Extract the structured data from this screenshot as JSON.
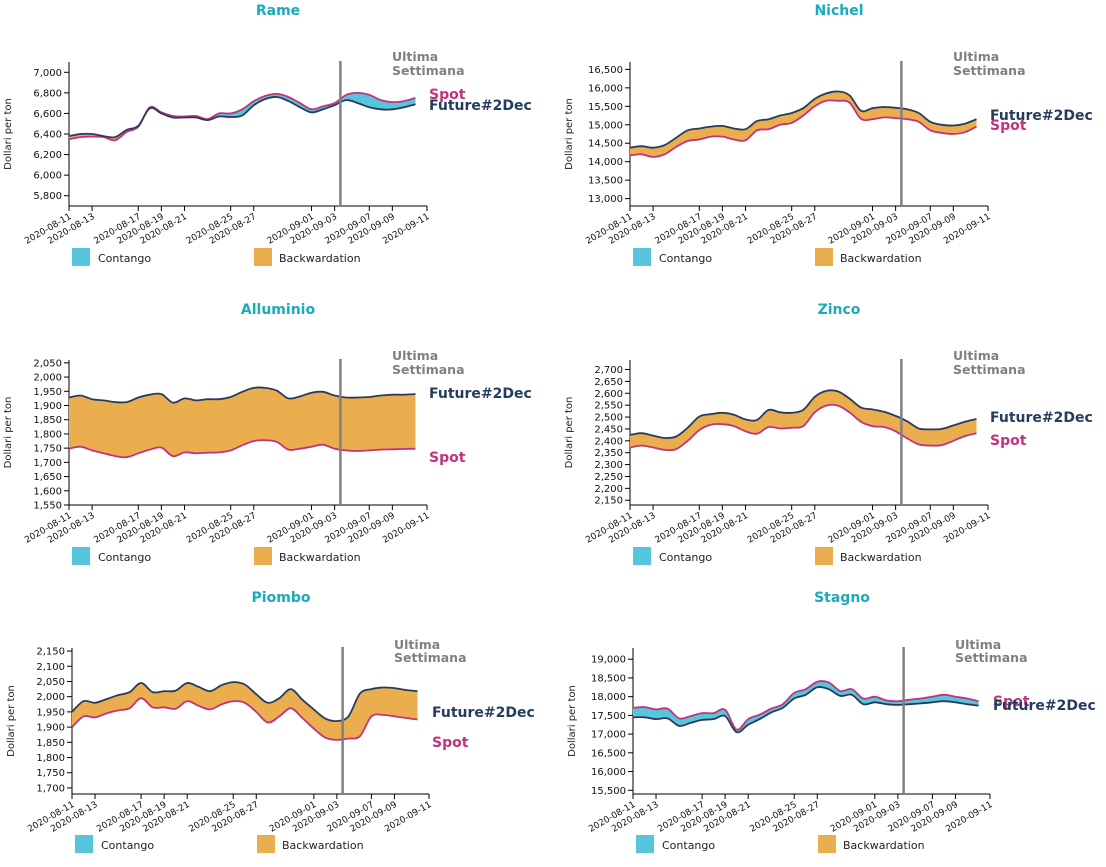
{
  "legend": {
    "contango": "Contango",
    "backwardation": "Backwardation"
  },
  "labels": {
    "last_week": "Ultima Settimana",
    "last_week_line1": "Ultima",
    "last_week_line2": "Settimana"
  },
  "colors": {
    "title": "#1aabbc",
    "spot": "#c6317b",
    "future": "#263c5c",
    "contango": "#57c6dd",
    "backwardation": "#eaae4e",
    "marker": "#808080",
    "marker_text": "#808080"
  },
  "chart_data": [
    {
      "type": "area",
      "title": "Rame",
      "ylabel": "Dollari per ton",
      "xlabel": "",
      "ylim": [
        5700,
        7100
      ],
      "yticks": [
        5800,
        6000,
        6200,
        6400,
        6600,
        6800,
        7000
      ],
      "ytick_labels": [
        "5,800",
        "6,000",
        "6,200",
        "6,400",
        "6,600",
        "6,800",
        "7,000"
      ],
      "x_domain": [
        0,
        31
      ],
      "xticks": [
        0,
        2,
        6,
        8,
        10,
        14,
        16,
        21,
        23,
        26,
        28,
        31
      ],
      "xtick_labels": [
        "2020-08-11",
        "2020-08-13",
        "2020-08-17",
        "2020-08-19",
        "2020-08-21",
        "2020-08-25",
        "2020-08-27",
        "2020-09-01",
        "2020-09-03",
        "2020-09-07",
        "2020-09-09",
        "2020-09-11"
      ],
      "marker_x": 23.5,
      "x": [
        0,
        1,
        2,
        3,
        4,
        5,
        6,
        7,
        8,
        9,
        10,
        11,
        12,
        13,
        14,
        15,
        16,
        17,
        18,
        19,
        20,
        21,
        22,
        23,
        24,
        25,
        26,
        27,
        28,
        29,
        30
      ],
      "series": [
        {
          "name": "Spot",
          "values": [
            6350,
            6370,
            6375,
            6370,
            6340,
            6420,
            6470,
            6660,
            6610,
            6575,
            6570,
            6575,
            6545,
            6600,
            6600,
            6640,
            6720,
            6770,
            6790,
            6760,
            6700,
            6640,
            6670,
            6700,
            6780,
            6800,
            6780,
            6730,
            6710,
            6720,
            6750
          ]
        },
        {
          "name": "Future#2Dec",
          "values": [
            6380,
            6400,
            6400,
            6380,
            6370,
            6440,
            6480,
            6650,
            6600,
            6560,
            6560,
            6560,
            6535,
            6570,
            6565,
            6580,
            6680,
            6740,
            6760,
            6720,
            6660,
            6610,
            6640,
            6680,
            6730,
            6700,
            6660,
            6640,
            6640,
            6660,
            6690
          ]
        }
      ]
    },
    {
      "type": "area",
      "title": "Nichel",
      "ylabel": "Dollari per ton",
      "xlabel": "",
      "ylim": [
        12800,
        16700
      ],
      "yticks": [
        13000,
        13500,
        14000,
        14500,
        15000,
        15500,
        16000,
        16500
      ],
      "ytick_labels": [
        "13,000",
        "13,500",
        "14,000",
        "14,500",
        "15,000",
        "15,500",
        "16,000",
        "16,500"
      ],
      "x_domain": [
        0,
        31
      ],
      "xticks": [
        0,
        2,
        6,
        8,
        10,
        14,
        16,
        21,
        23,
        26,
        28,
        31
      ],
      "xtick_labels": [
        "2020-08-11",
        "2020-08-13",
        "2020-08-17",
        "2020-08-19",
        "2020-08-21",
        "2020-08-25",
        "2020-08-27",
        "2020-09-01",
        "2020-09-03",
        "2020-09-07",
        "2020-09-09",
        "2020-09-11"
      ],
      "marker_x": 23.5,
      "x": [
        0,
        1,
        2,
        3,
        4,
        5,
        6,
        7,
        8,
        9,
        10,
        11,
        12,
        13,
        14,
        15,
        16,
        17,
        18,
        19,
        20,
        21,
        22,
        23,
        24,
        25,
        26,
        27,
        28,
        29,
        30
      ],
      "series": [
        {
          "name": "Spot",
          "values": [
            14170,
            14200,
            14130,
            14200,
            14400,
            14560,
            14600,
            14680,
            14680,
            14600,
            14580,
            14850,
            14880,
            15000,
            15050,
            15250,
            15500,
            15650,
            15650,
            15600,
            15160,
            15150,
            15200,
            15180,
            15150,
            15080,
            14850,
            14780,
            14750,
            14800,
            14950
          ]
        },
        {
          "name": "Future#2Dec",
          "values": [
            14380,
            14420,
            14380,
            14450,
            14650,
            14850,
            14900,
            14950,
            14970,
            14900,
            14880,
            15100,
            15150,
            15250,
            15320,
            15450,
            15700,
            15850,
            15900,
            15800,
            15380,
            15450,
            15480,
            15460,
            15420,
            15320,
            15080,
            15000,
            14980,
            15030,
            15150
          ]
        }
      ]
    },
    {
      "type": "area",
      "title": "Alluminio",
      "ylabel": "Dollari per ton",
      "xlabel": "",
      "ylim": [
        1550,
        2060
      ],
      "yticks": [
        1550,
        1600,
        1650,
        1700,
        1750,
        1800,
        1850,
        1900,
        1950,
        2000,
        2050
      ],
      "ytick_labels": [
        "1,550",
        "1,600",
        "1,650",
        "1,700",
        "1,750",
        "1,800",
        "1,850",
        "1,900",
        "1,950",
        "2,000",
        "2,050"
      ],
      "x_domain": [
        0,
        31
      ],
      "xticks": [
        0,
        2,
        6,
        8,
        10,
        14,
        16,
        21,
        23,
        26,
        28,
        31
      ],
      "xtick_labels": [
        "2020-08-11",
        "2020-08-13",
        "2020-08-17",
        "2020-08-19",
        "2020-08-21",
        "2020-08-25",
        "2020-08-27",
        "2020-09-01",
        "2020-09-03",
        "2020-09-07",
        "2020-09-09",
        "2020-09-11"
      ],
      "marker_x": 23.5,
      "x": [
        0,
        1,
        2,
        3,
        4,
        5,
        6,
        7,
        8,
        9,
        10,
        11,
        12,
        13,
        14,
        15,
        16,
        17,
        18,
        19,
        20,
        21,
        22,
        23,
        24,
        25,
        26,
        27,
        28,
        29,
        30
      ],
      "series": [
        {
          "name": "Spot",
          "values": [
            1748,
            1755,
            1742,
            1732,
            1722,
            1718,
            1732,
            1745,
            1752,
            1722,
            1735,
            1732,
            1734,
            1735,
            1742,
            1760,
            1775,
            1778,
            1772,
            1745,
            1748,
            1755,
            1762,
            1748,
            1742,
            1740,
            1742,
            1745,
            1746,
            1747,
            1748
          ]
        },
        {
          "name": "Future#2Dec",
          "values": [
            1928,
            1935,
            1922,
            1918,
            1912,
            1912,
            1928,
            1938,
            1940,
            1910,
            1925,
            1918,
            1922,
            1922,
            1930,
            1948,
            1962,
            1962,
            1952,
            1925,
            1932,
            1945,
            1948,
            1935,
            1928,
            1928,
            1930,
            1935,
            1938,
            1938,
            1940
          ]
        }
      ]
    },
    {
      "type": "area",
      "title": "Zinco",
      "ylabel": "Dollari per ton",
      "xlabel": "",
      "ylim": [
        2130,
        2740
      ],
      "yticks": [
        2150,
        2200,
        2250,
        2300,
        2350,
        2400,
        2450,
        2500,
        2550,
        2600,
        2650,
        2700
      ],
      "ytick_labels": [
        "2,150",
        "2,200",
        "2,250",
        "2,300",
        "2,350",
        "2,400",
        "2,450",
        "2,500",
        "2,550",
        "2,600",
        "2,650",
        "2,700"
      ],
      "x_domain": [
        0,
        31
      ],
      "xticks": [
        0,
        2,
        6,
        8,
        10,
        14,
        16,
        21,
        23,
        26,
        28,
        31
      ],
      "xtick_labels": [
        "2020-08-11",
        "2020-08-13",
        "2020-08-17",
        "2020-08-19",
        "2020-08-21",
        "2020-08-25",
        "2020-08-27",
        "2020-09-01",
        "2020-09-03",
        "2020-09-07",
        "2020-09-09",
        "2020-09-11"
      ],
      "marker_x": 23.5,
      "x": [
        0,
        1,
        2,
        3,
        4,
        5,
        6,
        7,
        8,
        9,
        10,
        11,
        12,
        13,
        14,
        15,
        16,
        17,
        18,
        19,
        20,
        21,
        22,
        23,
        24,
        25,
        26,
        27,
        28,
        29,
        30
      ],
      "series": [
        {
          "name": "Spot",
          "values": [
            2372,
            2380,
            2372,
            2362,
            2365,
            2400,
            2445,
            2468,
            2470,
            2462,
            2440,
            2430,
            2458,
            2452,
            2455,
            2462,
            2520,
            2548,
            2548,
            2520,
            2480,
            2462,
            2458,
            2440,
            2410,
            2385,
            2380,
            2382,
            2400,
            2420,
            2432
          ]
        },
        {
          "name": "Future#2Dec",
          "values": [
            2425,
            2432,
            2422,
            2412,
            2418,
            2455,
            2502,
            2512,
            2518,
            2510,
            2490,
            2488,
            2530,
            2520,
            2518,
            2530,
            2585,
            2610,
            2608,
            2578,
            2540,
            2532,
            2522,
            2505,
            2482,
            2452,
            2448,
            2450,
            2465,
            2480,
            2492
          ]
        }
      ]
    },
    {
      "type": "area",
      "title": "Piombo",
      "ylabel": "Dollari per ton",
      "xlabel": "",
      "ylim": [
        1680,
        2160
      ],
      "yticks": [
        1700,
        1750,
        1800,
        1850,
        1900,
        1950,
        2000,
        2050,
        2100,
        2150
      ],
      "ytick_labels": [
        "1,700",
        "1,750",
        "1,800",
        "1,850",
        "1,900",
        "1,950",
        "2,000",
        "2,050",
        "2,100",
        "2,150"
      ],
      "x_domain": [
        0,
        31
      ],
      "xticks": [
        0,
        2,
        6,
        8,
        10,
        14,
        16,
        21,
        23,
        26,
        28,
        31
      ],
      "xtick_labels": [
        "2020-08-11",
        "2020-08-13",
        "2020-08-17",
        "2020-08-19",
        "2020-08-21",
        "2020-08-25",
        "2020-08-27",
        "2020-09-01",
        "2020-09-03",
        "2020-09-07",
        "2020-09-09",
        "2020-09-11"
      ],
      "marker_x": 23.5,
      "x": [
        0,
        1,
        2,
        3,
        4,
        5,
        6,
        7,
        8,
        9,
        10,
        11,
        12,
        13,
        14,
        15,
        16,
        17,
        18,
        19,
        20,
        21,
        22,
        23,
        24,
        25,
        26,
        27,
        28,
        29,
        30
      ],
      "series": [
        {
          "name": "Spot",
          "values": [
            1900,
            1935,
            1932,
            1945,
            1955,
            1962,
            1995,
            1965,
            1965,
            1960,
            1985,
            1970,
            1958,
            1975,
            1985,
            1980,
            1950,
            1915,
            1935,
            1962,
            1930,
            1895,
            1865,
            1858,
            1862,
            1870,
            1935,
            1940,
            1935,
            1930,
            1925
          ]
        },
        {
          "name": "Future#2Dec",
          "values": [
            1950,
            1985,
            1980,
            1992,
            2005,
            2015,
            2045,
            2015,
            2018,
            2020,
            2045,
            2032,
            2018,
            2038,
            2048,
            2040,
            2008,
            1980,
            1995,
            2025,
            1990,
            1958,
            1928,
            1920,
            1935,
            2010,
            2025,
            2030,
            2028,
            2022,
            2018
          ]
        }
      ]
    },
    {
      "type": "area",
      "title": "Stagno",
      "ylabel": "Dollari per ton",
      "xlabel": "",
      "ylim": [
        15400,
        19300
      ],
      "yticks": [
        15500,
        16000,
        16500,
        17000,
        17500,
        18000,
        18500,
        19000
      ],
      "ytick_labels": [
        "15,500",
        "16,000",
        "16,500",
        "17,000",
        "17,500",
        "18,000",
        "18,500",
        "19,000"
      ],
      "x_domain": [
        0,
        31
      ],
      "xticks": [
        0,
        2,
        6,
        8,
        10,
        14,
        16,
        21,
        23,
        26,
        28,
        31
      ],
      "xtick_labels": [
        "2020-08-11",
        "2020-08-13",
        "2020-08-17",
        "2020-08-19",
        "2020-08-21",
        "2020-08-25",
        "2020-08-27",
        "2020-09-01",
        "2020-09-03",
        "2020-09-07",
        "2020-09-09",
        "2020-09-11"
      ],
      "marker_x": 23.5,
      "x": [
        0,
        1,
        2,
        3,
        4,
        5,
        6,
        7,
        8,
        9,
        10,
        11,
        12,
        13,
        14,
        15,
        16,
        17,
        18,
        19,
        20,
        21,
        22,
        23,
        24,
        25,
        26,
        27,
        28,
        29,
        30
      ],
      "series": [
        {
          "name": "Spot",
          "values": [
            17700,
            17720,
            17660,
            17680,
            17420,
            17480,
            17560,
            17560,
            17650,
            17120,
            17400,
            17520,
            17680,
            17800,
            18100,
            18200,
            18400,
            18380,
            18150,
            18200,
            17950,
            18000,
            17900,
            17880,
            17920,
            17950,
            18000,
            18050,
            18000,
            17950,
            17880
          ]
        },
        {
          "name": "Future#2Dec",
          "values": [
            17450,
            17450,
            17400,
            17420,
            17220,
            17300,
            17380,
            17400,
            17480,
            17050,
            17250,
            17400,
            17580,
            17700,
            17950,
            18050,
            18250,
            18200,
            18020,
            18050,
            17800,
            17850,
            17800,
            17780,
            17800,
            17820,
            17850,
            17880,
            17850,
            17800,
            17760
          ]
        }
      ]
    }
  ]
}
